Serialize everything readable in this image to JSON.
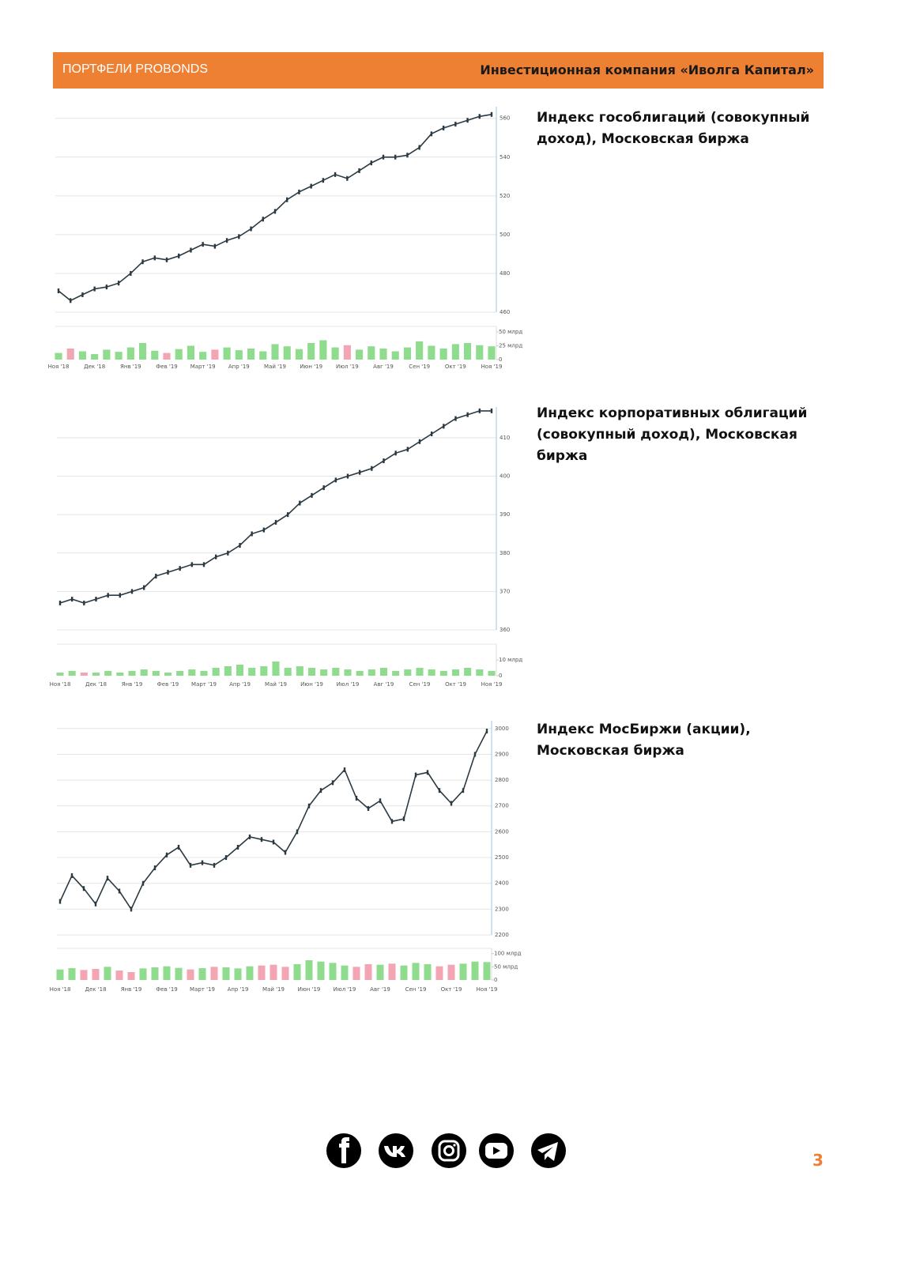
{
  "header": {
    "left": "ПОРТФЕЛИ PROBONDS",
    "right": "Инвестиционная компания «Иволга Капитал»"
  },
  "charts": [
    {
      "type": "line",
      "title": "Индекс гособлигаций (совокупный доход), Московская биржа",
      "categories": [
        "Ноя '18",
        null,
        null,
        "Дек '18",
        null,
        null,
        "Янв '19",
        null,
        null,
        "Фев '19",
        null,
        null,
        "Март '19",
        null,
        null,
        "Апр '19",
        null,
        null,
        "Май '19",
        null,
        null,
        "Июн '19",
        null,
        null,
        "Июл '19",
        null,
        null,
        "Авг '19",
        null,
        null,
        "Сен '19",
        null,
        null,
        "Окт '19",
        null,
        null,
        "Ноя '19"
      ],
      "values": [
        471,
        466,
        469,
        472,
        473,
        475,
        480,
        486,
        488,
        487,
        489,
        492,
        495,
        494,
        497,
        499,
        503,
        508,
        512,
        518,
        522,
        525,
        528,
        531,
        529,
        533,
        537,
        540,
        540,
        541,
        545,
        552,
        555,
        557,
        559,
        561,
        562
      ],
      "volumes": [
        12,
        20,
        15,
        10,
        18,
        14,
        22,
        30,
        16,
        12,
        19,
        25,
        14,
        18,
        22,
        17,
        20,
        15,
        28,
        24,
        19,
        30,
        35,
        22,
        26,
        18,
        24,
        20,
        15,
        22,
        33,
        25,
        20,
        28,
        30,
        26,
        24
      ],
      "ylim": [
        460,
        566
      ],
      "yticks": [
        460,
        480,
        500,
        520,
        540,
        560
      ],
      "vlim": [
        0,
        60
      ],
      "vticks": [
        0,
        {
          "value": 25,
          "label": "25 млрд"
        },
        {
          "value": 50,
          "label": "50 млрд"
        }
      ],
      "color": "#2b3a42",
      "up_color": "#8fdc8f",
      "down_color": "#f3a5b3",
      "grid": true
    },
    {
      "type": "line",
      "title": "Индекс корпоративных облигаций (совокупный доход), Московская биржа",
      "categories": [
        "Ноя '18",
        null,
        null,
        "Дек '18",
        null,
        null,
        "Янв '19",
        null,
        null,
        "Фев '19",
        null,
        null,
        "Март '19",
        null,
        null,
        "Апр '19",
        null,
        null,
        "Май '19",
        null,
        null,
        "Июн '19",
        null,
        null,
        "Июл '19",
        null,
        null,
        "Авг '19",
        null,
        null,
        "Сен '19",
        null,
        null,
        "Окт '19",
        null,
        null,
        "Ноя '19"
      ],
      "values": [
        367,
        368,
        367,
        368,
        369,
        369,
        370,
        371,
        374,
        375,
        376,
        377,
        377,
        379,
        380,
        382,
        385,
        386,
        388,
        390,
        393,
        395,
        397,
        399,
        400,
        401,
        402,
        404,
        406,
        407,
        409,
        411,
        413,
        415,
        416,
        417,
        417
      ],
      "volumes": [
        2,
        3,
        2,
        2,
        3,
        2,
        3,
        4,
        3,
        2,
        3,
        4,
        3,
        5,
        6,
        7,
        5,
        6,
        9,
        5,
        6,
        5,
        4,
        5,
        4,
        3,
        4,
        5,
        3,
        4,
        5,
        4,
        3,
        4,
        5,
        4,
        3
      ],
      "ylim": [
        360,
        418
      ],
      "yticks": [
        360,
        370,
        380,
        390,
        400,
        410
      ],
      "vlim": [
        0,
        20
      ],
      "vticks": [
        0,
        {
          "value": 10,
          "label": "10 млрд"
        }
      ],
      "color": "#2b3a42",
      "up_color": "#8fdc8f",
      "down_color": "#f3a5b3",
      "grid": true
    },
    {
      "type": "line",
      "title": "Индекс МосБиржи (акции), Московская биржа",
      "categories": [
        "Ноя '18",
        null,
        null,
        "Дек '18",
        null,
        null,
        "Янв '19",
        null,
        null,
        "Фев '19",
        null,
        null,
        "Март '19",
        null,
        null,
        "Апр '19",
        null,
        null,
        "Май '19",
        null,
        null,
        "Июн '19",
        null,
        null,
        "Июл '19",
        null,
        null,
        "Авг '19",
        null,
        null,
        "Сен '19",
        null,
        null,
        "Окт '19",
        null,
        null,
        "Ноя '19"
      ],
      "values": [
        2330,
        2430,
        2380,
        2320,
        2420,
        2370,
        2300,
        2400,
        2460,
        2510,
        2540,
        2470,
        2480,
        2470,
        2500,
        2540,
        2580,
        2570,
        2560,
        2520,
        2600,
        2700,
        2760,
        2790,
        2840,
        2730,
        2690,
        2720,
        2640,
        2650,
        2820,
        2830,
        2760,
        2710,
        2760,
        2900,
        2990
      ],
      "volumes": [
        40,
        45,
        38,
        42,
        50,
        36,
        30,
        44,
        48,
        52,
        46,
        40,
        45,
        50,
        48,
        44,
        52,
        55,
        58,
        50,
        60,
        75,
        70,
        65,
        55,
        50,
        60,
        58,
        62,
        55,
        65,
        60,
        52,
        58,
        62,
        70,
        68
      ],
      "ylim": [
        2200,
        3030
      ],
      "yticks": [
        2200,
        2300,
        2400,
        2500,
        2600,
        2700,
        2800,
        2900,
        3000
      ],
      "vlim": [
        0,
        120
      ],
      "vticks": [
        0,
        {
          "value": 50,
          "label": "50 млрд"
        },
        {
          "value": 100,
          "label": "100 млрд"
        }
      ],
      "color": "#2b3a42",
      "up_color": "#8fdc8f",
      "down_color": "#f3a5b3",
      "grid": true
    }
  ],
  "page_number": "3"
}
